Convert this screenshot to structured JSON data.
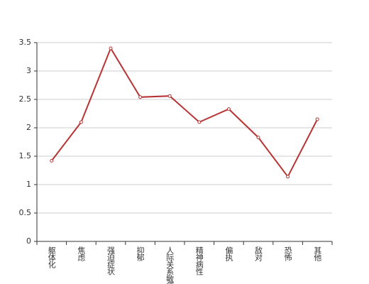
{
  "chart_data": {
    "type": "line",
    "categories": [
      "躯体化",
      "焦虑",
      "强迫症状",
      "抑郁",
      "人际关系敏感",
      "精神病性",
      "偏执",
      "敌对",
      "恐怖",
      "其他"
    ],
    "values": [
      1.42,
      2.1,
      3.4,
      2.54,
      2.56,
      2.1,
      2.33,
      1.83,
      1.14,
      2.15
    ],
    "color": "#b83434",
    "ylim": [
      0,
      3.5
    ],
    "yticks": [
      0,
      0.5,
      1,
      1.5,
      2,
      2.5,
      3,
      3.5
    ],
    "grid": true
  }
}
